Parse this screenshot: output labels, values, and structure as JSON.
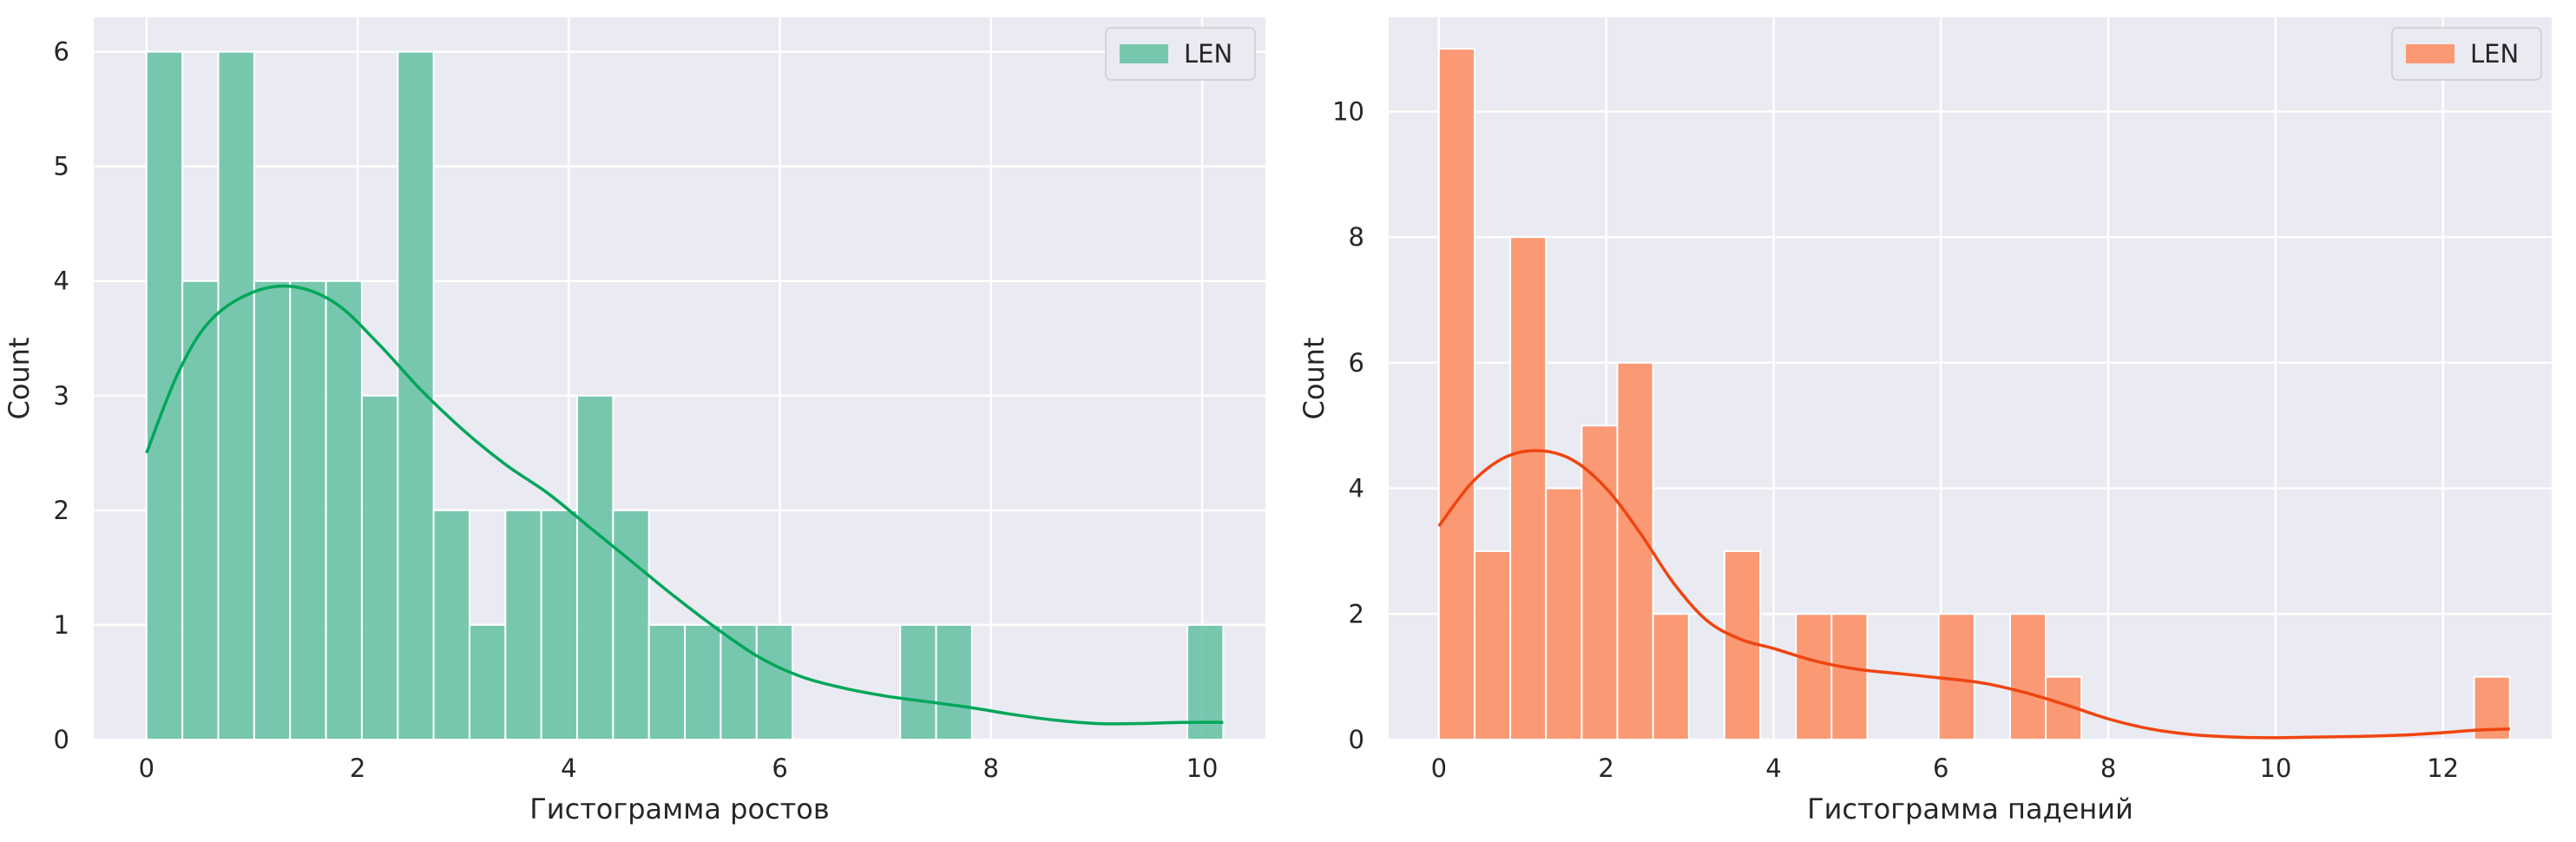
{
  "chart_data": [
    {
      "type": "bar",
      "subtype": "histogram-with-kde",
      "xlabel": "Гистограмма ростов",
      "ylabel": "Count",
      "xlim": [
        -0.5,
        10.6
      ],
      "ylim": [
        0,
        6.3
      ],
      "xticks": [
        "0",
        "2",
        "4",
        "6",
        "8",
        "10"
      ],
      "yticks": [
        "0",
        "1",
        "2",
        "3",
        "4",
        "5",
        "6"
      ],
      "grid": true,
      "legend": {
        "position": "top-right",
        "entries": [
          "LEN"
        ]
      },
      "bar_color": "#66c2a5",
      "kde_color": "#00a65a",
      "bin_edges": [
        0,
        0.34,
        0.68,
        1.02,
        1.36,
        1.7,
        2.04,
        2.38,
        2.72,
        3.06,
        3.4,
        3.74,
        4.08,
        4.42,
        4.76,
        5.1,
        5.44,
        5.78,
        6.12,
        6.46,
        6.8,
        7.14,
        7.48,
        7.82,
        8.16,
        8.5,
        8.84,
        9.18,
        9.52,
        9.86,
        10.2
      ],
      "counts": [
        6,
        4,
        6,
        4,
        4,
        4,
        3,
        6,
        2,
        1,
        2,
        2,
        3,
        2,
        1,
        1,
        1,
        1,
        0,
        0,
        0,
        1,
        1,
        0,
        0,
        0,
        0,
        0,
        0,
        1
      ],
      "kde": {
        "x": [
          0,
          0.3,
          0.6,
          1.0,
          1.4,
          1.8,
          2.2,
          2.6,
          3.0,
          3.4,
          3.8,
          4.2,
          4.6,
          5.0,
          5.4,
          5.8,
          6.2,
          6.6,
          7.0,
          7.4,
          7.8,
          8.2,
          8.6,
          9.0,
          9.4,
          9.8,
          10.2
        ],
        "y": [
          2.5,
          3.2,
          3.65,
          3.9,
          3.95,
          3.8,
          3.45,
          3.05,
          2.7,
          2.4,
          2.15,
          1.85,
          1.55,
          1.25,
          0.97,
          0.72,
          0.55,
          0.45,
          0.38,
          0.33,
          0.28,
          0.22,
          0.17,
          0.14,
          0.14,
          0.15,
          0.15
        ]
      }
    },
    {
      "type": "bar",
      "subtype": "histogram-with-kde",
      "xlabel": "Гистограмма падений",
      "ylabel": "Count",
      "xlim": [
        -0.6,
        13.3
      ],
      "ylim": [
        0,
        11.5
      ],
      "xticks": [
        "0",
        "2",
        "4",
        "6",
        "8",
        "10",
        "12"
      ],
      "yticks": [
        "0",
        "2",
        "4",
        "6",
        "8",
        "10"
      ],
      "grid": true,
      "legend": {
        "position": "top-right",
        "entries": [
          "LEN"
        ]
      },
      "bar_color": "#fc8d62",
      "kde_color": "#f0440f",
      "bin_edges": [
        0,
        0.427,
        0.853,
        1.28,
        1.707,
        2.133,
        2.56,
        2.987,
        3.413,
        3.84,
        4.267,
        4.693,
        5.12,
        5.547,
        5.973,
        6.4,
        6.827,
        7.253,
        7.68,
        8.107,
        8.533,
        8.96,
        9.387,
        9.813,
        10.24,
        10.667,
        11.093,
        11.52,
        11.947,
        12.373,
        12.8
      ],
      "counts": [
        11,
        3,
        8,
        4,
        5,
        6,
        2,
        0,
        3,
        0,
        2,
        2,
        0,
        0,
        2,
        0,
        2,
        1,
        0,
        0,
        0,
        0,
        0,
        0,
        0,
        0,
        0,
        0,
        0,
        1
      ],
      "kde": {
        "x": [
          0,
          0.4,
          0.8,
          1.2,
          1.6,
          2.0,
          2.4,
          2.8,
          3.2,
          3.6,
          4.0,
          4.5,
          5.0,
          5.5,
          6.0,
          6.5,
          7.0,
          7.5,
          8.0,
          8.5,
          9.0,
          9.5,
          10.0,
          10.5,
          11.0,
          11.5,
          12.0,
          12.4,
          12.8
        ],
        "y": [
          3.4,
          4.1,
          4.5,
          4.6,
          4.45,
          4.0,
          3.3,
          2.5,
          1.9,
          1.6,
          1.45,
          1.25,
          1.12,
          1.05,
          0.98,
          0.9,
          0.75,
          0.55,
          0.33,
          0.17,
          0.08,
          0.04,
          0.03,
          0.04,
          0.05,
          0.07,
          0.11,
          0.15,
          0.17
        ]
      }
    }
  ]
}
